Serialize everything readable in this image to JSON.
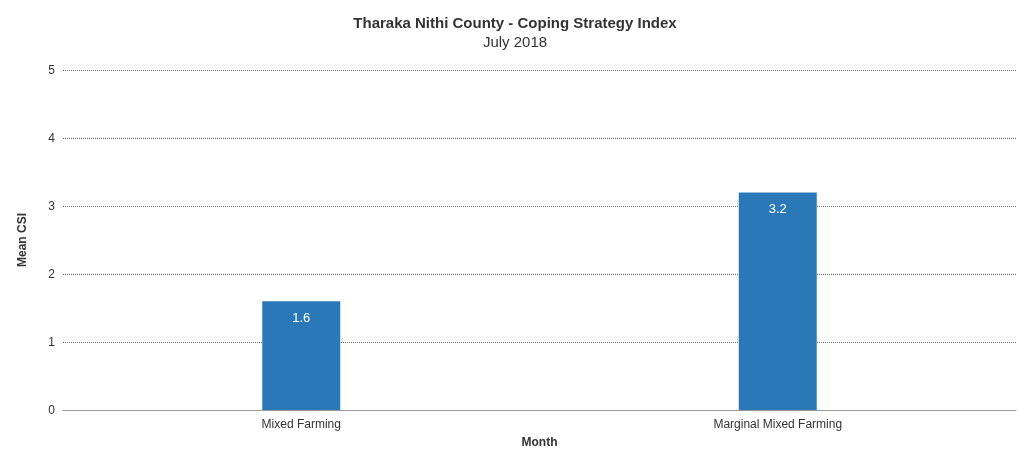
{
  "chart_data": {
    "type": "bar",
    "title": "Tharaka Nithi County - Coping Strategy Index",
    "subtitle": "July 2018",
    "xlabel": "Month",
    "ylabel": "Mean CSI",
    "categories": [
      "Mixed Farming",
      "Marginal Mixed Farming"
    ],
    "values": [
      1.6,
      3.2
    ],
    "color": "#2a78b8",
    "ylim": [
      0,
      5
    ],
    "yticks": [
      0,
      1,
      2,
      3,
      4,
      5
    ],
    "grid": "y",
    "data_labels": true
  }
}
